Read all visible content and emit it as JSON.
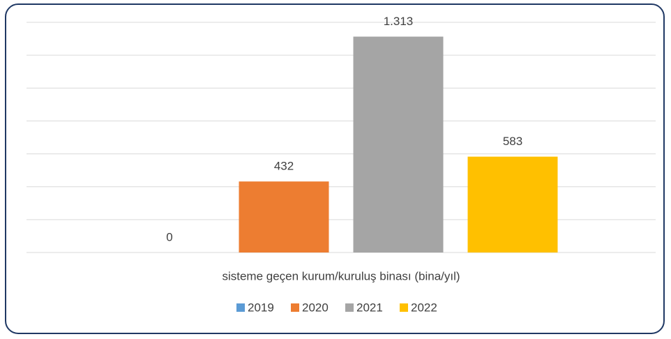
{
  "chart_data": {
    "type": "bar",
    "categories": [
      "sisteme geçen kurum/kuruluş binası (bina/yıl)"
    ],
    "series": [
      {
        "name": "2019",
        "color": "#5b9bd5",
        "values": [
          0
        ]
      },
      {
        "name": "2020",
        "color": "#ed7d31",
        "values": [
          432
        ]
      },
      {
        "name": "2021",
        "color": "#a5a5a5",
        "values": [
          1313
        ],
        "value_labels": [
          "1.313"
        ]
      },
      {
        "name": "2022",
        "color": "#ffc000",
        "values": [
          583
        ]
      }
    ],
    "ylim": [
      0,
      1400
    ],
    "yticks": [
      0,
      200,
      400,
      600,
      800,
      1000,
      1200,
      1400
    ],
    "grid": true,
    "legend": "bottom"
  }
}
